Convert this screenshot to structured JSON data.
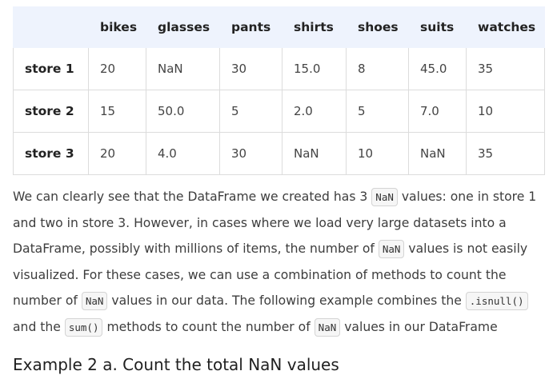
{
  "table": {
    "columns": [
      "bikes",
      "glasses",
      "pants",
      "shirts",
      "shoes",
      "suits",
      "watches"
    ],
    "rows": [
      {
        "label": "store 1",
        "cells": [
          "20",
          "NaN",
          "30",
          "15.0",
          "8",
          "45.0",
          "35"
        ]
      },
      {
        "label": "store 2",
        "cells": [
          "15",
          "50.0",
          "5",
          "2.0",
          "5",
          "7.0",
          "10"
        ]
      },
      {
        "label": "store 3",
        "cells": [
          "20",
          "4.0",
          "30",
          "NaN",
          "10",
          "NaN",
          "35"
        ]
      }
    ]
  },
  "prose": {
    "t1": "We can clearly see that the DataFrame we created has 3 ",
    "c1": "NaN",
    "t2": " values: one in store 1 and two in store 3. However, in cases where we load very large datasets into a DataFrame, possibly with millions of items, the number of ",
    "c2": "NaN",
    "t3": " values is not easily visualized. For these cases, we can use a combination of methods to count the number of ",
    "c3": "NaN",
    "t4": " values in our data. The following example combines the ",
    "c4": ".isnull()",
    "t5": " and the ",
    "c5": "sum()",
    "t6": " methods to count the number of ",
    "c6": "NaN",
    "t7": " values in our DataFrame"
  },
  "heading": "Example 2 a. Count the total NaN values"
}
